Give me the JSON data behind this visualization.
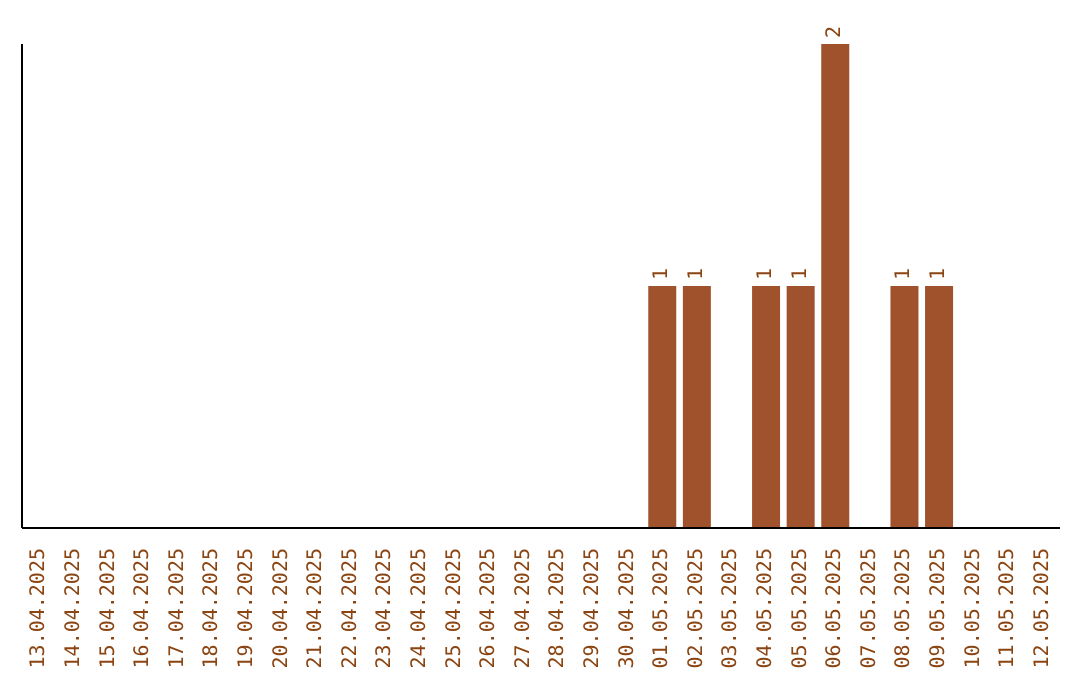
{
  "chart_data": {
    "type": "bar",
    "categories": [
      "13.04.2025",
      "14.04.2025",
      "15.04.2025",
      "16.04.2025",
      "17.04.2025",
      "18.04.2025",
      "19.04.2025",
      "20.04.2025",
      "21.04.2025",
      "22.04.2025",
      "23.04.2025",
      "24.04.2025",
      "25.04.2025",
      "26.04.2025",
      "27.04.2025",
      "28.04.2025",
      "29.04.2025",
      "30.04.2025",
      "01.05.2025",
      "02.05.2025",
      "03.05.2025",
      "04.05.2025",
      "05.05.2025",
      "06.05.2025",
      "07.05.2025",
      "08.05.2025",
      "09.05.2025",
      "10.05.2025",
      "11.05.2025",
      "12.05.2025"
    ],
    "values": [
      null,
      null,
      null,
      null,
      null,
      null,
      null,
      null,
      null,
      null,
      null,
      null,
      null,
      null,
      null,
      null,
      null,
      null,
      1,
      1,
      null,
      1,
      1,
      2,
      null,
      1,
      1,
      null,
      null,
      null
    ],
    "data_labels": true,
    "color": "#a0522d",
    "tick_labels": "x",
    "grid": false,
    "legend": false
  }
}
